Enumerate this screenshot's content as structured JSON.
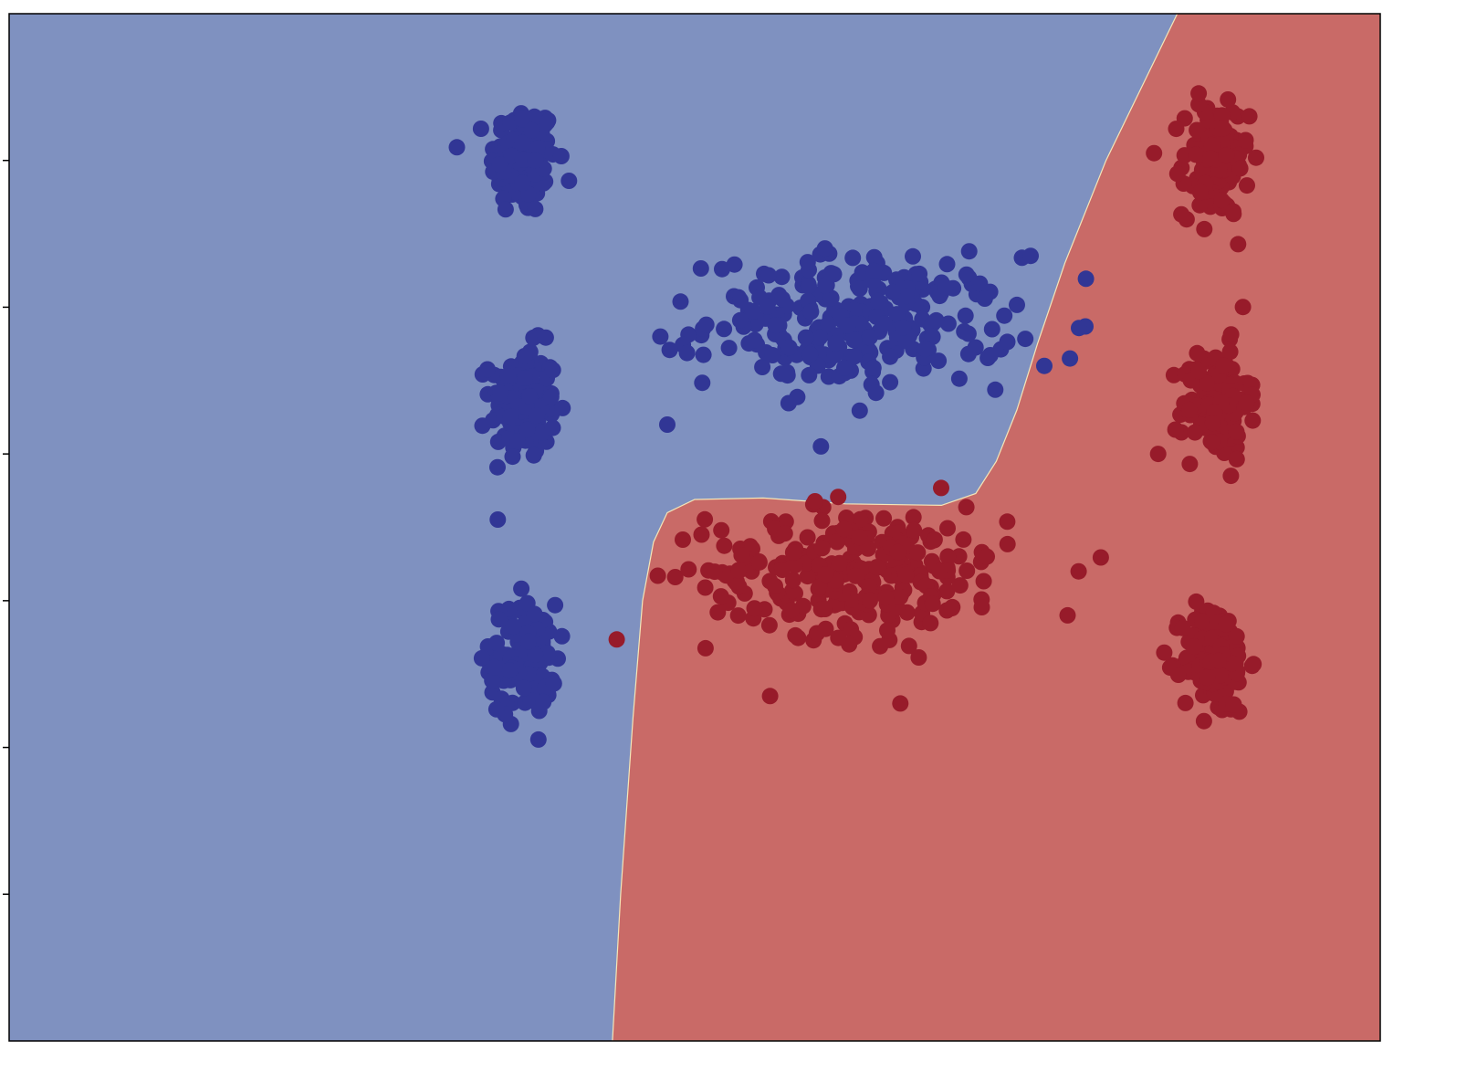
{
  "chart_data": {
    "type": "scatter",
    "title": "",
    "xlabel": "",
    "ylabel": "",
    "xlim": [
      0,
      10
    ],
    "ylim": [
      0,
      7
    ],
    "grid": false,
    "legend": "none",
    "colors": {
      "region_blue": "#7f91c0",
      "region_red": "#c96a67",
      "point_blue": "#313695",
      "point_red": "#971b2a"
    },
    "decision_boundary": {
      "x": [
        4.4,
        4.46,
        4.55,
        4.62,
        4.7,
        4.8,
        5.0,
        5.5,
        6.1,
        6.8,
        7.05,
        7.2,
        7.35,
        7.5,
        7.7,
        8.0,
        8.52
      ],
      "y": [
        0.0,
        1.0,
        2.2,
        3.0,
        3.4,
        3.6,
        3.69,
        3.7,
        3.66,
        3.65,
        3.73,
        3.95,
        4.3,
        4.75,
        5.3,
        6.0,
        7.0
      ]
    },
    "clusters": [
      {
        "class": "blue",
        "cx": 3.75,
        "cy": 6.0,
        "sx": 0.12,
        "sy": 0.19,
        "n": 130
      },
      {
        "class": "blue",
        "cx": 3.75,
        "cy": 4.35,
        "sx": 0.12,
        "sy": 0.19,
        "n": 130
      },
      {
        "class": "blue",
        "cx": 3.75,
        "cy": 2.6,
        "sx": 0.12,
        "sy": 0.19,
        "n": 130
      },
      {
        "class": "blue",
        "cx": 6.2,
        "cy": 4.9,
        "sx": 0.55,
        "sy": 0.22,
        "n": 260
      },
      {
        "class": "red",
        "cx": 8.8,
        "cy": 6.0,
        "sx": 0.12,
        "sy": 0.19,
        "n": 130
      },
      {
        "class": "red",
        "cx": 8.8,
        "cy": 4.35,
        "sx": 0.12,
        "sy": 0.19,
        "n": 130
      },
      {
        "class": "red",
        "cx": 8.8,
        "cy": 2.6,
        "sx": 0.12,
        "sy": 0.19,
        "n": 130
      },
      {
        "class": "red",
        "cx": 6.2,
        "cy": 3.2,
        "sx": 0.55,
        "sy": 0.22,
        "n": 260
      }
    ],
    "outliers": [
      {
        "class": "blue",
        "x": 4.75,
        "y": 4.8
      },
      {
        "class": "blue",
        "x": 4.8,
        "y": 4.2
      },
      {
        "class": "blue",
        "x": 7.45,
        "y": 5.35
      },
      {
        "class": "blue",
        "x": 7.55,
        "y": 4.6
      },
      {
        "class": "blue",
        "x": 5.95,
        "y": 5.4
      },
      {
        "class": "red",
        "x": 5.05,
        "y": 3.45
      },
      {
        "class": "red",
        "x": 7.8,
        "y": 3.2
      },
      {
        "class": "red",
        "x": 7.72,
        "y": 2.9
      },
      {
        "class": "red",
        "x": 5.55,
        "y": 2.35
      },
      {
        "class": "red",
        "x": 6.5,
        "y": 2.3
      },
      {
        "class": "red",
        "x": 8.38,
        "y": 4.0
      },
      {
        "class": "red",
        "x": 8.35,
        "y": 6.05
      }
    ]
  }
}
